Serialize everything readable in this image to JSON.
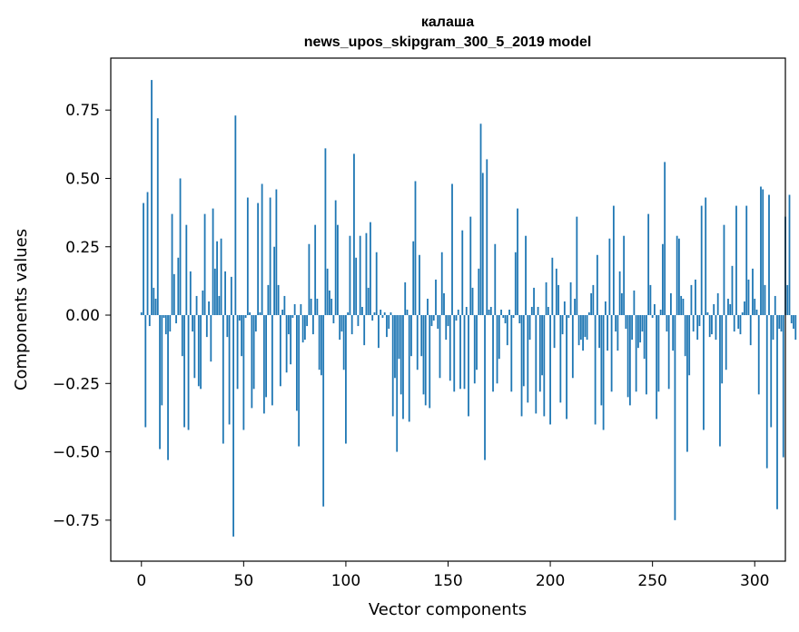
{
  "chart_data": {
    "type": "bar",
    "title": "калаша",
    "subtitle": "news_upos_skipgram_300_5_2019 model",
    "xlabel": "Vector components",
    "ylabel": "Components values",
    "xlim": [
      -15,
      315
    ],
    "ylim": [
      -0.9,
      0.94
    ],
    "xticks": [
      0,
      50,
      100,
      150,
      200,
      250,
      300
    ],
    "xtick_labels": [
      "0",
      "50",
      "100",
      "150",
      "200",
      "250",
      "300"
    ],
    "yticks": [
      -0.75,
      -0.5,
      -0.25,
      0.0,
      0.25,
      0.5,
      0.75
    ],
    "ytick_labels": [
      "−0.75",
      "−0.50",
      "−0.25",
      "0.00",
      "0.25",
      "0.50",
      "0.75"
    ],
    "bar_color": "#1f77b4",
    "series": [
      {
        "name": "калаша",
        "x_start": 0,
        "values": [
          0.01,
          0.41,
          -0.41,
          0.45,
          -0.04,
          0.86,
          0.1,
          0.06,
          0.72,
          -0.49,
          -0.33,
          -0.01,
          -0.07,
          -0.53,
          -0.06,
          0.37,
          0.15,
          -0.03,
          0.21,
          0.5,
          -0.15,
          -0.41,
          0.33,
          -0.42,
          0.16,
          -0.06,
          -0.23,
          0.07,
          -0.26,
          -0.27,
          0.09,
          0.37,
          -0.08,
          0.05,
          -0.17,
          0.39,
          0.17,
          0.27,
          0.07,
          0.28,
          -0.47,
          0.16,
          -0.08,
          -0.4,
          0.14,
          -0.81,
          0.73,
          -0.27,
          -0.02,
          -0.15,
          -0.42,
          -0.01,
          0.43,
          0.01,
          -0.34,
          -0.27,
          -0.06,
          0.41,
          0.01,
          0.48,
          -0.36,
          -0.3,
          0.11,
          0.43,
          -0.33,
          0.25,
          0.46,
          0.11,
          -0.26,
          0.02,
          0.07,
          -0.21,
          -0.07,
          -0.18,
          -0.01,
          0.04,
          -0.35,
          -0.48,
          0.04,
          -0.1,
          -0.09,
          -0.04,
          0.26,
          0.06,
          -0.07,
          0.33,
          0.06,
          -0.2,
          -0.22,
          -0.7,
          0.61,
          0.17,
          0.09,
          0.06,
          -0.03,
          0.42,
          0.33,
          -0.09,
          -0.06,
          -0.2,
          -0.47,
          0.01,
          0.29,
          -0.07,
          0.59,
          0.21,
          -0.04,
          0.29,
          0.03,
          -0.11,
          0.3,
          0.1,
          0.34,
          -0.02,
          0.01,
          0.23,
          -0.12,
          0.02,
          -0.01,
          0.01,
          -0.08,
          -0.05,
          0.01,
          -0.37,
          -0.23,
          -0.5,
          -0.16,
          -0.29,
          -0.38,
          0.12,
          0.02,
          -0.39,
          -0.15,
          0.27,
          0.49,
          -0.2,
          0.22,
          -0.15,
          -0.29,
          -0.33,
          0.06,
          -0.34,
          -0.04,
          -0.02,
          0.13,
          -0.05,
          -0.23,
          0.23,
          0.08,
          -0.09,
          -0.04,
          -0.24,
          0.48,
          -0.28,
          -0.02,
          0.02,
          -0.27,
          0.31,
          -0.27,
          0.03,
          -0.37,
          0.36,
          0.1,
          -0.25,
          -0.2,
          0.17,
          0.7,
          0.52,
          -0.53,
          0.57,
          0.02,
          0.03,
          -0.28,
          0.26,
          -0.25,
          -0.16,
          0.02,
          -0.01,
          -0.03,
          -0.11,
          0.02,
          -0.28,
          -0.01,
          0.23,
          0.39,
          -0.03,
          -0.37,
          -0.26,
          0.29,
          -0.32,
          -0.09,
          0.03,
          0.1,
          -0.36,
          0.03,
          -0.28,
          -0.22,
          -0.37,
          0.12,
          0.03,
          -0.4,
          0.21,
          -0.12,
          0.17,
          0.11,
          -0.32,
          -0.07,
          0.05,
          -0.38,
          -0.01,
          0.12,
          -0.23,
          0.06,
          0.36,
          -0.11,
          -0.09,
          -0.13,
          -0.08,
          -0.09,
          0.01,
          0.08,
          0.11,
          -0.4,
          0.22,
          -0.12,
          -0.33,
          -0.42,
          0.05,
          -0.13,
          0.28,
          -0.28,
          0.4,
          -0.06,
          -0.13,
          0.16,
          0.08,
          0.29,
          -0.05,
          -0.3,
          -0.33,
          -0.09,
          0.09,
          -0.28,
          -0.12,
          -0.1,
          -0.06,
          -0.16,
          -0.29,
          0.37,
          0.11,
          -0.01,
          0.04,
          -0.38,
          -0.28,
          0.02,
          0.26,
          0.56,
          -0.06,
          -0.27,
          0.08,
          -0.13,
          -0.75,
          0.29,
          0.28,
          0.07,
          0.06,
          -0.15,
          -0.5,
          -0.22,
          0.11,
          -0.06,
          0.13,
          -0.09,
          -0.04,
          0.4,
          -0.42,
          0.43,
          0.01,
          -0.08,
          -0.07,
          0.04,
          -0.09,
          0.08,
          -0.48,
          -0.25,
          0.33,
          -0.2,
          0.06,
          0.04,
          0.18,
          -0.06,
          0.4,
          -0.05,
          -0.07,
          0.01,
          0.05,
          0.4,
          0.13,
          -0.11,
          0.17,
          0.06,
          0.02,
          -0.29,
          0.47,
          0.46,
          0.11,
          -0.56,
          0.44,
          -0.41,
          -0.09,
          0.07,
          -0.71,
          -0.05,
          -0.06,
          -0.52,
          0.36,
          0.11,
          0.44,
          -0.03,
          -0.05,
          -0.09
        ]
      }
    ]
  }
}
